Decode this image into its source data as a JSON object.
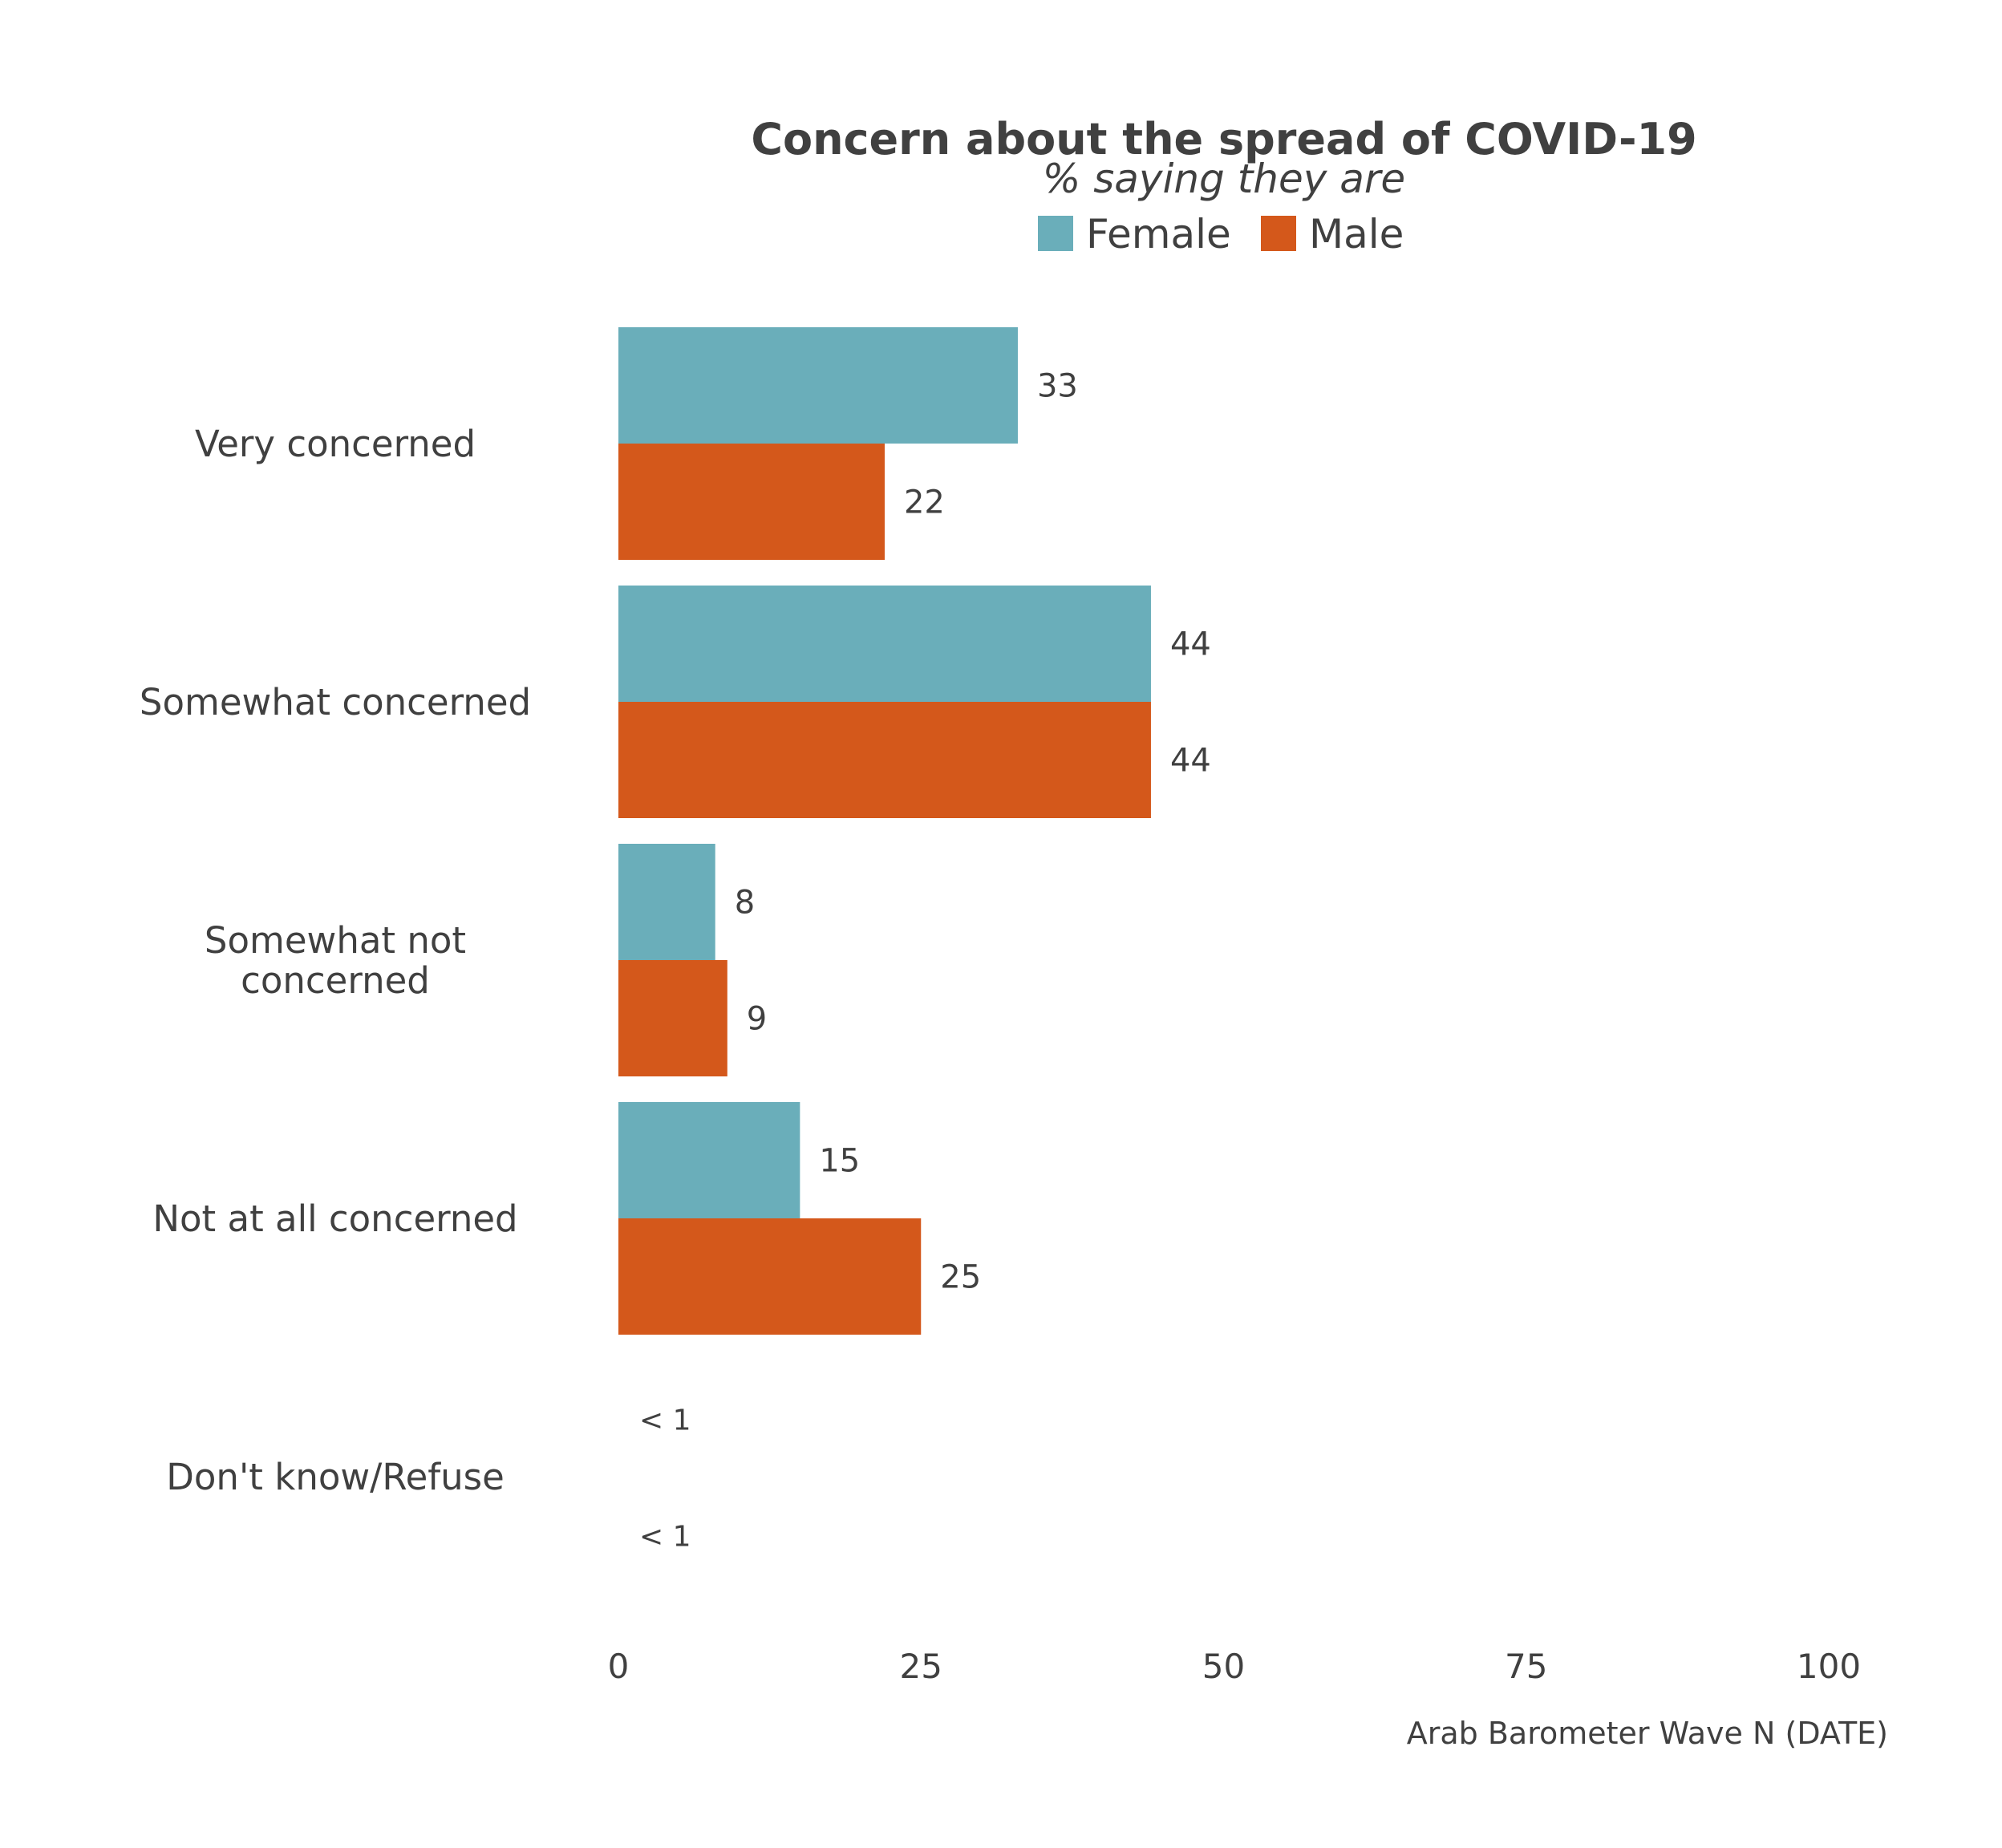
{
  "chart_data": {
    "type": "bar",
    "orientation": "horizontal",
    "title": "Concern about the spread of COVID-19",
    "subtitle": "% saying they are",
    "caption": "Arab Barometer Wave N (DATE)",
    "categories": [
      [
        "Very concerned"
      ],
      [
        "Somewhat concerned"
      ],
      [
        "Somewhat not",
        "concerned"
      ],
      [
        "Not at all concerned"
      ],
      [
        "Don't know/Refuse"
      ]
    ],
    "series": [
      {
        "name": "Female",
        "color": "#6aaeba",
        "values": [
          33,
          44,
          8,
          15,
          0.3
        ],
        "labels": [
          "33",
          "44",
          "8",
          "15",
          "< 1"
        ]
      },
      {
        "name": "Male",
        "color": "#d4581b",
        "values": [
          22,
          44,
          9,
          25,
          0.3
        ],
        "labels": [
          "22",
          "44",
          "9",
          "25",
          "< 1"
        ]
      }
    ],
    "xlim": [
      0,
      100
    ],
    "xticks": [
      0,
      25,
      50,
      75,
      100
    ],
    "legend_position": "top",
    "grid": false
  }
}
